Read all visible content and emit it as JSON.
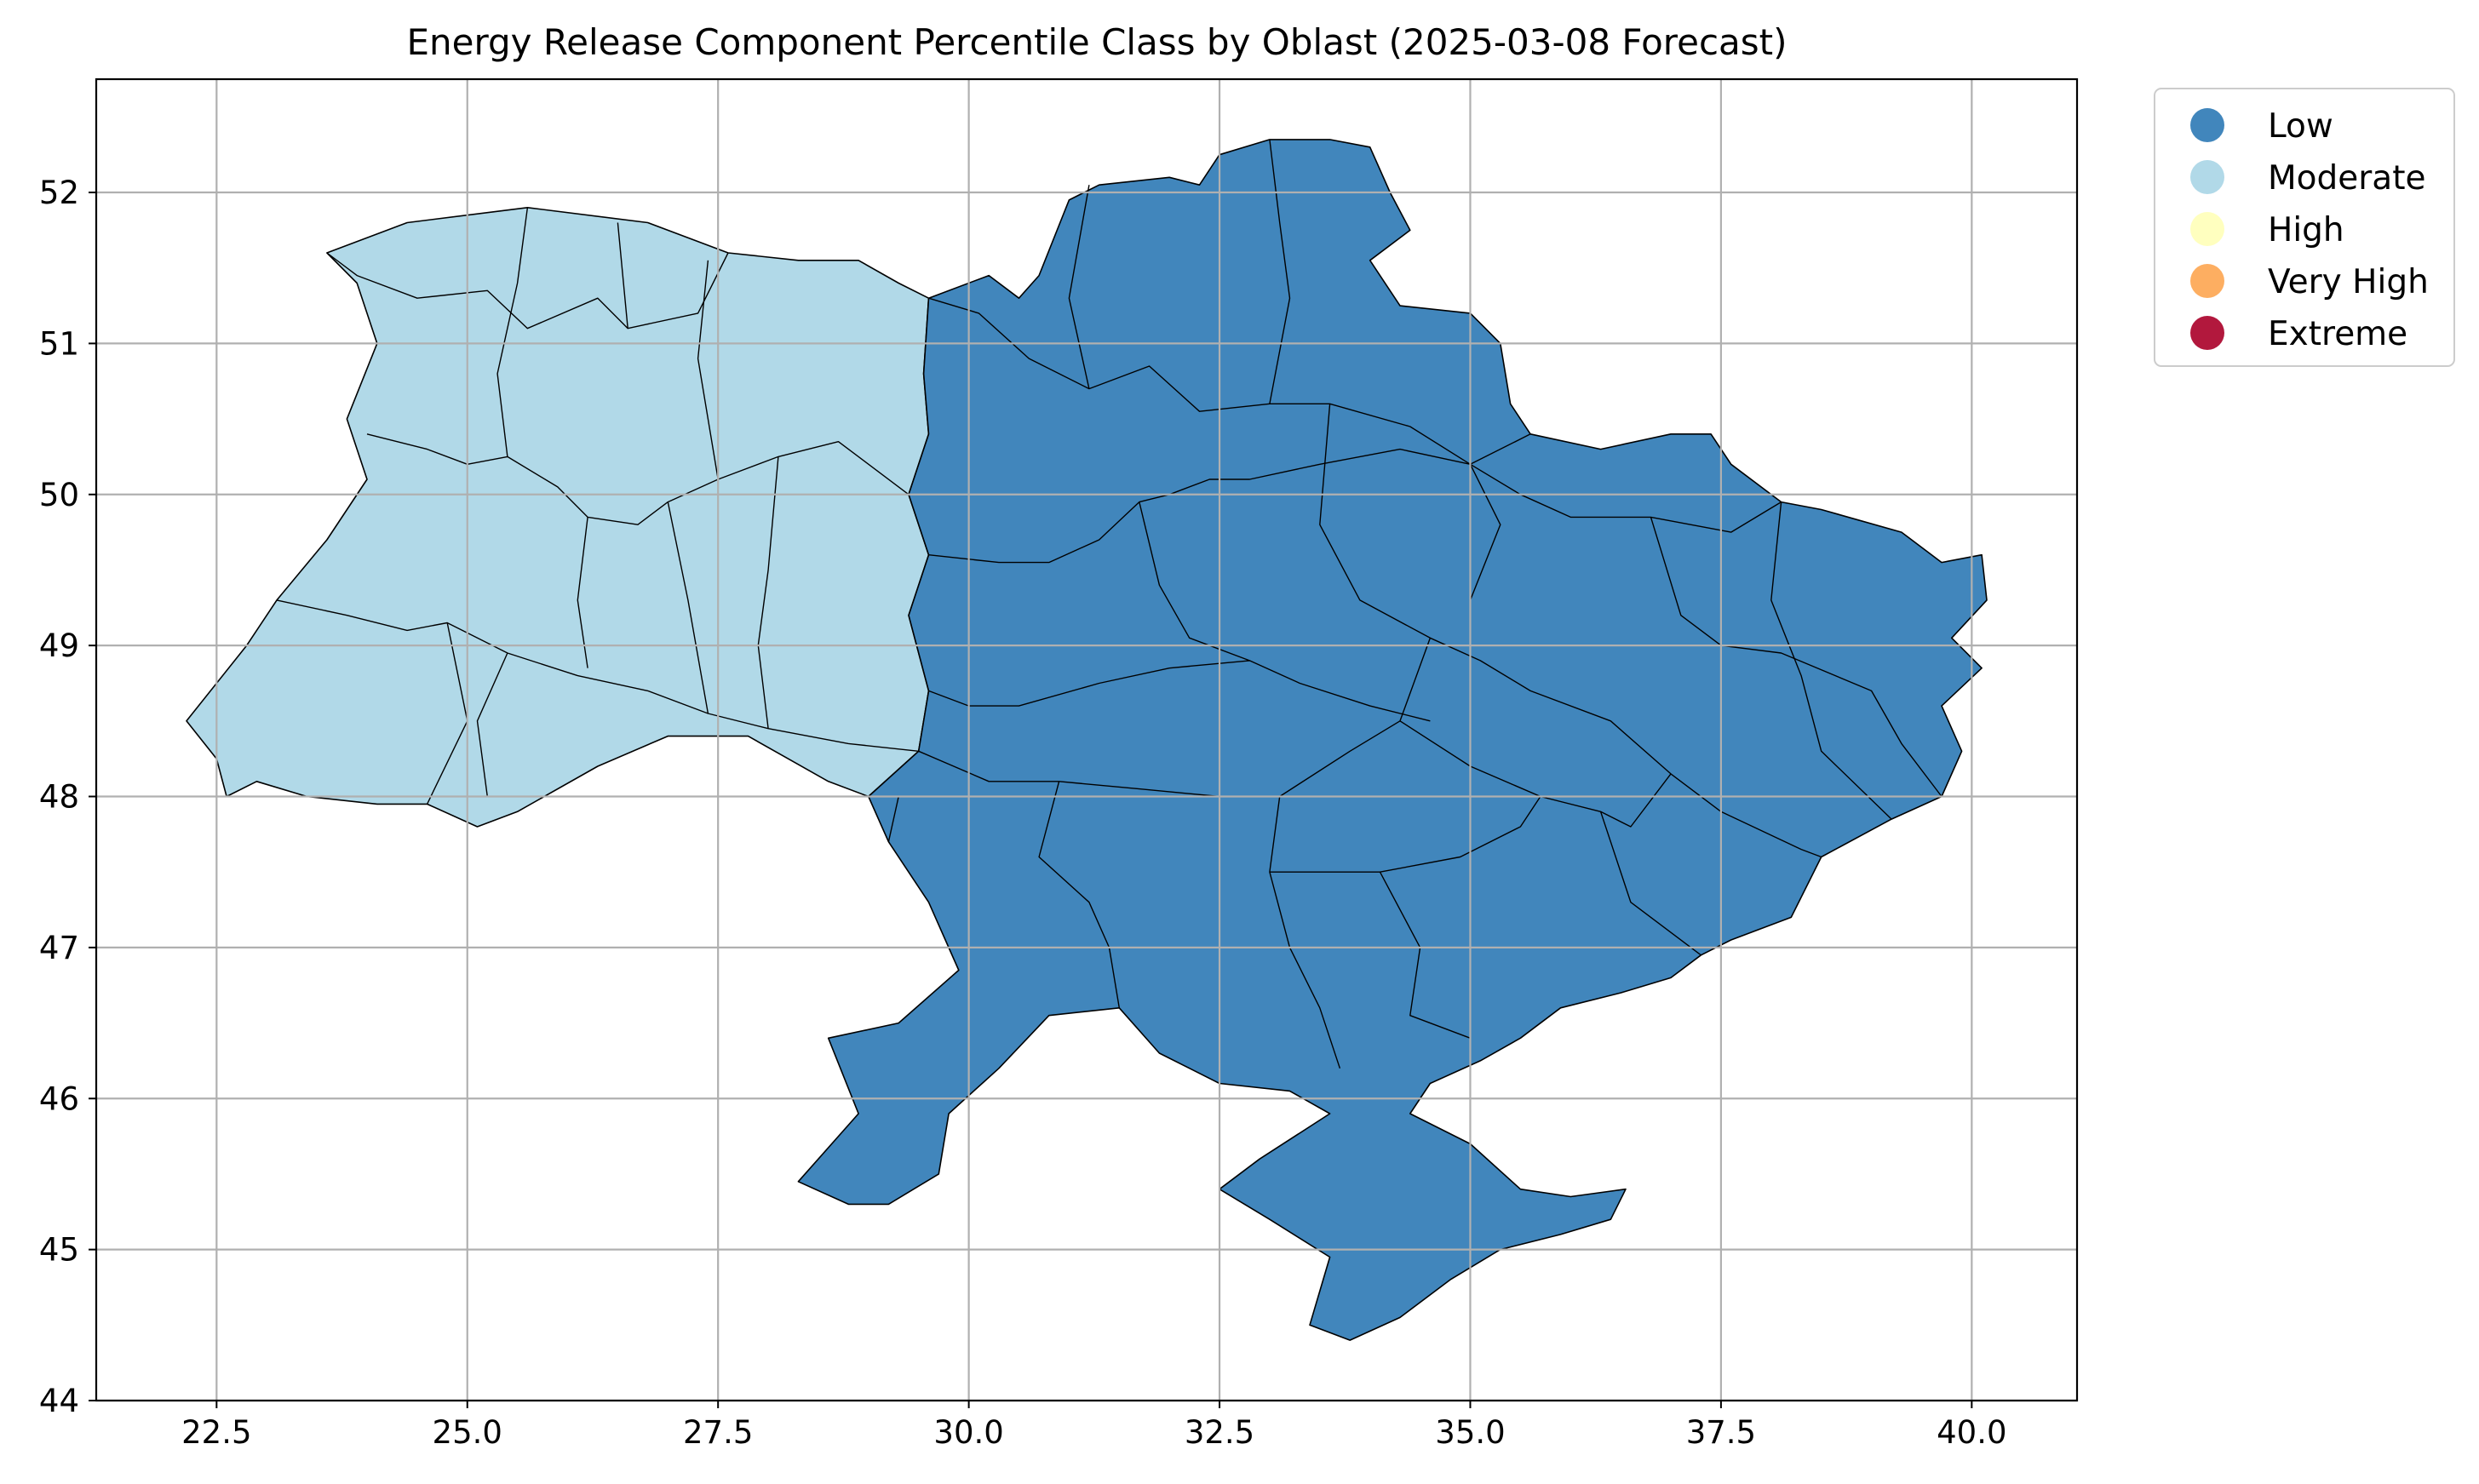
{
  "chart_data": {
    "type": "map",
    "title": "Energy Release Component Percentile Class by Oblast (2025-03-08 Forecast)",
    "xlabel": "",
    "ylabel": "",
    "xlim": [
      21.3,
      41.05
    ],
    "ylim": [
      44.0,
      52.75
    ],
    "x_ticks": [
      "22.5",
      "25.0",
      "27.5",
      "30.0",
      "32.5",
      "35.0",
      "37.5",
      "40.0"
    ],
    "y_ticks": [
      "44",
      "45",
      "46",
      "47",
      "48",
      "49",
      "50",
      "51",
      "52"
    ],
    "grid": true,
    "legend_position": "outside top-right",
    "legend": [
      {
        "label": "Low",
        "color": "#4186bc"
      },
      {
        "label": "Moderate",
        "color": "#b1d9e8"
      },
      {
        "label": "High",
        "color": "#ffffbf"
      },
      {
        "label": "Very High",
        "color": "#fdae61"
      },
      {
        "label": "Extreme",
        "color": "#b2183d"
      }
    ],
    "regions": {
      "moderate": {
        "class": "Moderate",
        "color": "#b1d9e8",
        "outline": [
          [
            22.2,
            48.5
          ],
          [
            22.8,
            49.0
          ],
          [
            23.1,
            49.3
          ],
          [
            23.6,
            49.7
          ],
          [
            24.0,
            50.1
          ],
          [
            23.8,
            50.5
          ],
          [
            24.1,
            51.0
          ],
          [
            23.9,
            51.4
          ],
          [
            23.6,
            51.6
          ],
          [
            24.4,
            51.8
          ],
          [
            25.6,
            51.9
          ],
          [
            26.8,
            51.8
          ],
          [
            27.6,
            51.6
          ],
          [
            28.3,
            51.55
          ],
          [
            28.9,
            51.55
          ],
          [
            29.3,
            51.4
          ],
          [
            29.6,
            51.3
          ],
          [
            29.55,
            50.8
          ],
          [
            29.6,
            50.4
          ],
          [
            29.4,
            50.0
          ],
          [
            29.6,
            49.6
          ],
          [
            29.4,
            49.2
          ],
          [
            29.6,
            48.7
          ],
          [
            29.5,
            48.3
          ],
          [
            29.0,
            48.0
          ],
          [
            28.6,
            48.1
          ],
          [
            27.8,
            48.4
          ],
          [
            27.0,
            48.4
          ],
          [
            26.3,
            48.2
          ],
          [
            25.5,
            47.9
          ],
          [
            25.1,
            47.8
          ],
          [
            24.6,
            47.95
          ],
          [
            24.1,
            47.95
          ],
          [
            23.4,
            48.0
          ],
          [
            22.9,
            48.1
          ],
          [
            22.6,
            48.0
          ],
          [
            22.5,
            48.25
          ]
        ]
      },
      "low": {
        "class": "Low",
        "color": "#4186bc",
        "outline": [
          [
            29.6,
            51.3
          ],
          [
            30.2,
            51.45
          ],
          [
            30.5,
            51.3
          ],
          [
            30.7,
            51.45
          ],
          [
            31.0,
            51.95
          ],
          [
            31.3,
            52.05
          ],
          [
            32.0,
            52.1
          ],
          [
            32.3,
            52.05
          ],
          [
            32.5,
            52.25
          ],
          [
            33.0,
            52.35
          ],
          [
            33.6,
            52.35
          ],
          [
            34.0,
            52.3
          ],
          [
            34.2,
            52.0
          ],
          [
            34.4,
            51.75
          ],
          [
            34.0,
            51.55
          ],
          [
            34.3,
            51.25
          ],
          [
            35.0,
            51.2
          ],
          [
            35.3,
            51.0
          ],
          [
            35.4,
            50.6
          ],
          [
            35.6,
            50.4
          ],
          [
            36.3,
            50.3
          ],
          [
            37.0,
            50.4
          ],
          [
            37.4,
            50.4
          ],
          [
            37.6,
            50.2
          ],
          [
            38.1,
            49.95
          ],
          [
            38.5,
            49.9
          ],
          [
            39.3,
            49.75
          ],
          [
            39.7,
            49.55
          ],
          [
            40.1,
            49.6
          ],
          [
            40.15,
            49.3
          ],
          [
            39.8,
            49.05
          ],
          [
            40.1,
            48.85
          ],
          [
            39.7,
            48.6
          ],
          [
            39.9,
            48.3
          ],
          [
            39.7,
            48.0
          ],
          [
            39.2,
            47.85
          ],
          [
            38.5,
            47.6
          ],
          [
            38.2,
            47.2
          ],
          [
            37.6,
            47.05
          ],
          [
            37.3,
            46.95
          ],
          [
            37.0,
            46.8
          ],
          [
            36.5,
            46.7
          ],
          [
            35.9,
            46.6
          ],
          [
            35.5,
            46.4
          ],
          [
            35.1,
            46.25
          ],
          [
            34.6,
            46.1
          ],
          [
            34.4,
            45.9
          ],
          [
            35.0,
            45.7
          ],
          [
            35.5,
            45.4
          ],
          [
            36.0,
            45.35
          ],
          [
            36.55,
            45.4
          ],
          [
            36.4,
            45.2
          ],
          [
            35.9,
            45.1
          ],
          [
            35.3,
            45.0
          ],
          [
            34.8,
            44.8
          ],
          [
            34.3,
            44.55
          ],
          [
            33.8,
            44.4
          ],
          [
            33.4,
            44.5
          ],
          [
            33.6,
            44.95
          ],
          [
            33.0,
            45.2
          ],
          [
            32.5,
            45.4
          ],
          [
            32.9,
            45.6
          ],
          [
            33.6,
            45.9
          ],
          [
            33.2,
            46.05
          ],
          [
            32.5,
            46.1
          ],
          [
            31.9,
            46.3
          ],
          [
            31.5,
            46.6
          ],
          [
            30.8,
            46.55
          ],
          [
            30.3,
            46.2
          ],
          [
            29.8,
            45.9
          ],
          [
            29.7,
            45.5
          ],
          [
            29.2,
            45.3
          ],
          [
            28.8,
            45.3
          ],
          [
            28.3,
            45.45
          ],
          [
            28.9,
            45.9
          ],
          [
            28.6,
            46.4
          ],
          [
            29.3,
            46.5
          ],
          [
            29.9,
            46.85
          ],
          [
            29.6,
            47.3
          ],
          [
            29.2,
            47.7
          ],
          [
            29.0,
            48.0
          ],
          [
            29.5,
            48.3
          ],
          [
            29.6,
            48.7
          ],
          [
            29.4,
            49.2
          ],
          [
            29.6,
            49.6
          ],
          [
            29.4,
            50.0
          ],
          [
            29.6,
            50.4
          ],
          [
            29.55,
            50.8
          ]
        ]
      },
      "inner_borders": [
        [
          [
            23.6,
            51.6
          ],
          [
            23.9,
            51.45
          ],
          [
            24.5,
            51.3
          ],
          [
            25.2,
            51.35
          ],
          [
            25.6,
            51.1
          ],
          [
            26.3,
            51.3
          ],
          [
            26.6,
            51.1
          ],
          [
            27.3,
            51.2
          ],
          [
            27.6,
            51.6
          ]
        ],
        [
          [
            24.0,
            50.4
          ],
          [
            24.6,
            50.3
          ],
          [
            25.0,
            50.2
          ],
          [
            25.4,
            50.25
          ],
          [
            25.9,
            50.05
          ],
          [
            26.2,
            49.85
          ],
          [
            26.7,
            49.8
          ],
          [
            27.0,
            49.95
          ],
          [
            27.5,
            50.1
          ],
          [
            28.1,
            50.25
          ],
          [
            28.7,
            50.35
          ],
          [
            29.4,
            50.0
          ]
        ],
        [
          [
            27.4,
            51.55
          ],
          [
            27.3,
            50.9
          ],
          [
            27.5,
            50.1
          ]
        ],
        [
          [
            25.6,
            51.9
          ],
          [
            25.5,
            51.4
          ],
          [
            25.3,
            50.8
          ],
          [
            25.4,
            50.25
          ]
        ],
        [
          [
            26.5,
            51.8
          ],
          [
            26.6,
            51.1
          ]
        ],
        [
          [
            23.1,
            49.3
          ],
          [
            23.8,
            49.2
          ],
          [
            24.4,
            49.1
          ],
          [
            24.8,
            49.15
          ],
          [
            25.4,
            48.95
          ],
          [
            26.1,
            48.8
          ],
          [
            26.8,
            48.7
          ],
          [
            27.4,
            48.55
          ],
          [
            28.0,
            48.45
          ],
          [
            28.8,
            48.35
          ],
          [
            29.5,
            48.3
          ]
        ],
        [
          [
            26.2,
            49.85
          ],
          [
            26.1,
            49.3
          ],
          [
            26.2,
            48.85
          ]
        ],
        [
          [
            27.0,
            49.95
          ],
          [
            27.2,
            49.3
          ],
          [
            27.4,
            48.55
          ]
        ],
        [
          [
            28.1,
            50.25
          ],
          [
            28.0,
            49.5
          ],
          [
            27.9,
            49.0
          ],
          [
            28.0,
            48.45
          ]
        ],
        [
          [
            24.8,
            49.15
          ],
          [
            25.0,
            48.5
          ],
          [
            24.6,
            47.95
          ]
        ],
        [
          [
            25.4,
            48.95
          ],
          [
            25.1,
            48.5
          ],
          [
            25.2,
            48.0
          ]
        ],
        [
          [
            29.6,
            51.3
          ],
          [
            30.1,
            51.2
          ],
          [
            30.6,
            50.9
          ],
          [
            31.2,
            50.7
          ],
          [
            31.8,
            50.85
          ],
          [
            32.3,
            50.55
          ],
          [
            33.0,
            50.6
          ],
          [
            33.6,
            50.6
          ],
          [
            34.4,
            50.45
          ],
          [
            35.0,
            50.2
          ],
          [
            35.6,
            50.4
          ]
        ],
        [
          [
            33.0,
            52.35
          ],
          [
            33.1,
            51.8
          ],
          [
            33.2,
            51.3
          ],
          [
            33.0,
            50.6
          ]
        ],
        [
          [
            31.2,
            52.05
          ],
          [
            31.0,
            51.3
          ],
          [
            31.2,
            50.7
          ]
        ],
        [
          [
            29.6,
            49.6
          ],
          [
            30.3,
            49.55
          ],
          [
            30.8,
            49.55
          ],
          [
            31.3,
            49.7
          ],
          [
            31.7,
            49.95
          ],
          [
            32.0,
            50.0
          ],
          [
            32.4,
            50.1
          ],
          [
            32.8,
            50.1
          ],
          [
            33.5,
            50.2
          ],
          [
            34.3,
            50.3
          ],
          [
            35.0,
            50.2
          ],
          [
            35.5,
            50.0
          ],
          [
            36.0,
            49.85
          ],
          [
            36.8,
            49.85
          ],
          [
            37.6,
            49.75
          ],
          [
            38.1,
            49.95
          ]
        ],
        [
          [
            31.7,
            49.95
          ],
          [
            31.9,
            49.4
          ],
          [
            32.2,
            49.05
          ],
          [
            32.8,
            48.9
          ]
        ],
        [
          [
            33.6,
            50.6
          ],
          [
            33.5,
            49.8
          ],
          [
            33.9,
            49.3
          ],
          [
            34.6,
            49.05
          ],
          [
            35.1,
            48.9
          ],
          [
            35.6,
            48.7
          ],
          [
            36.4,
            48.5
          ],
          [
            37.0,
            48.15
          ],
          [
            37.5,
            47.9
          ],
          [
            38.3,
            47.65
          ],
          [
            38.5,
            47.6
          ]
        ],
        [
          [
            35.0,
            50.2
          ],
          [
            35.3,
            49.8
          ],
          [
            35.0,
            49.3
          ],
          [
            35.0,
            48.9
          ]
        ],
        [
          [
            36.8,
            49.85
          ],
          [
            37.1,
            49.2
          ],
          [
            37.5,
            49.0
          ],
          [
            38.1,
            48.95
          ],
          [
            39.0,
            48.7
          ],
          [
            39.3,
            48.35
          ],
          [
            39.7,
            48.0
          ]
        ],
        [
          [
            38.1,
            49.95
          ],
          [
            38.0,
            49.3
          ],
          [
            38.3,
            48.8
          ],
          [
            38.5,
            48.3
          ],
          [
            39.2,
            47.85
          ]
        ],
        [
          [
            29.6,
            48.7
          ],
          [
            30.0,
            48.6
          ],
          [
            30.5,
            48.6
          ],
          [
            31.3,
            48.75
          ],
          [
            32.0,
            48.85
          ],
          [
            32.8,
            48.9
          ],
          [
            33.3,
            48.75
          ],
          [
            34.0,
            48.6
          ],
          [
            34.6,
            48.5
          ]
        ],
        [
          [
            34.6,
            49.05
          ],
          [
            34.3,
            48.5
          ],
          [
            33.8,
            48.3
          ],
          [
            33.1,
            48.0
          ],
          [
            32.5,
            48.0
          ],
          [
            31.7,
            48.05
          ],
          [
            30.9,
            48.1
          ],
          [
            30.2,
            48.1
          ],
          [
            29.5,
            48.3
          ]
        ],
        [
          [
            34.3,
            48.5
          ],
          [
            35.0,
            48.2
          ],
          [
            35.7,
            48.0
          ],
          [
            36.3,
            47.9
          ],
          [
            36.6,
            47.8
          ],
          [
            37.0,
            48.15
          ]
        ],
        [
          [
            30.9,
            48.1
          ],
          [
            30.7,
            47.6
          ],
          [
            31.2,
            47.3
          ],
          [
            31.4,
            47.0
          ],
          [
            31.5,
            46.6
          ]
        ],
        [
          [
            33.1,
            48.0
          ],
          [
            33.0,
            47.5
          ],
          [
            33.2,
            47.0
          ],
          [
            33.5,
            46.6
          ],
          [
            33.7,
            46.2
          ]
        ],
        [
          [
            33.0,
            47.5
          ],
          [
            33.6,
            47.5
          ],
          [
            34.1,
            47.5
          ],
          [
            34.9,
            47.6
          ],
          [
            35.5,
            47.8
          ],
          [
            35.7,
            48.0
          ]
        ],
        [
          [
            34.1,
            47.5
          ],
          [
            34.5,
            47.0
          ],
          [
            34.4,
            46.55
          ],
          [
            35.0,
            46.4
          ]
        ],
        [
          [
            36.3,
            47.9
          ],
          [
            36.6,
            47.3
          ],
          [
            37.3,
            46.95
          ]
        ],
        [
          [
            29.3,
            48.0
          ],
          [
            29.2,
            47.7
          ]
        ]
      ]
    }
  }
}
